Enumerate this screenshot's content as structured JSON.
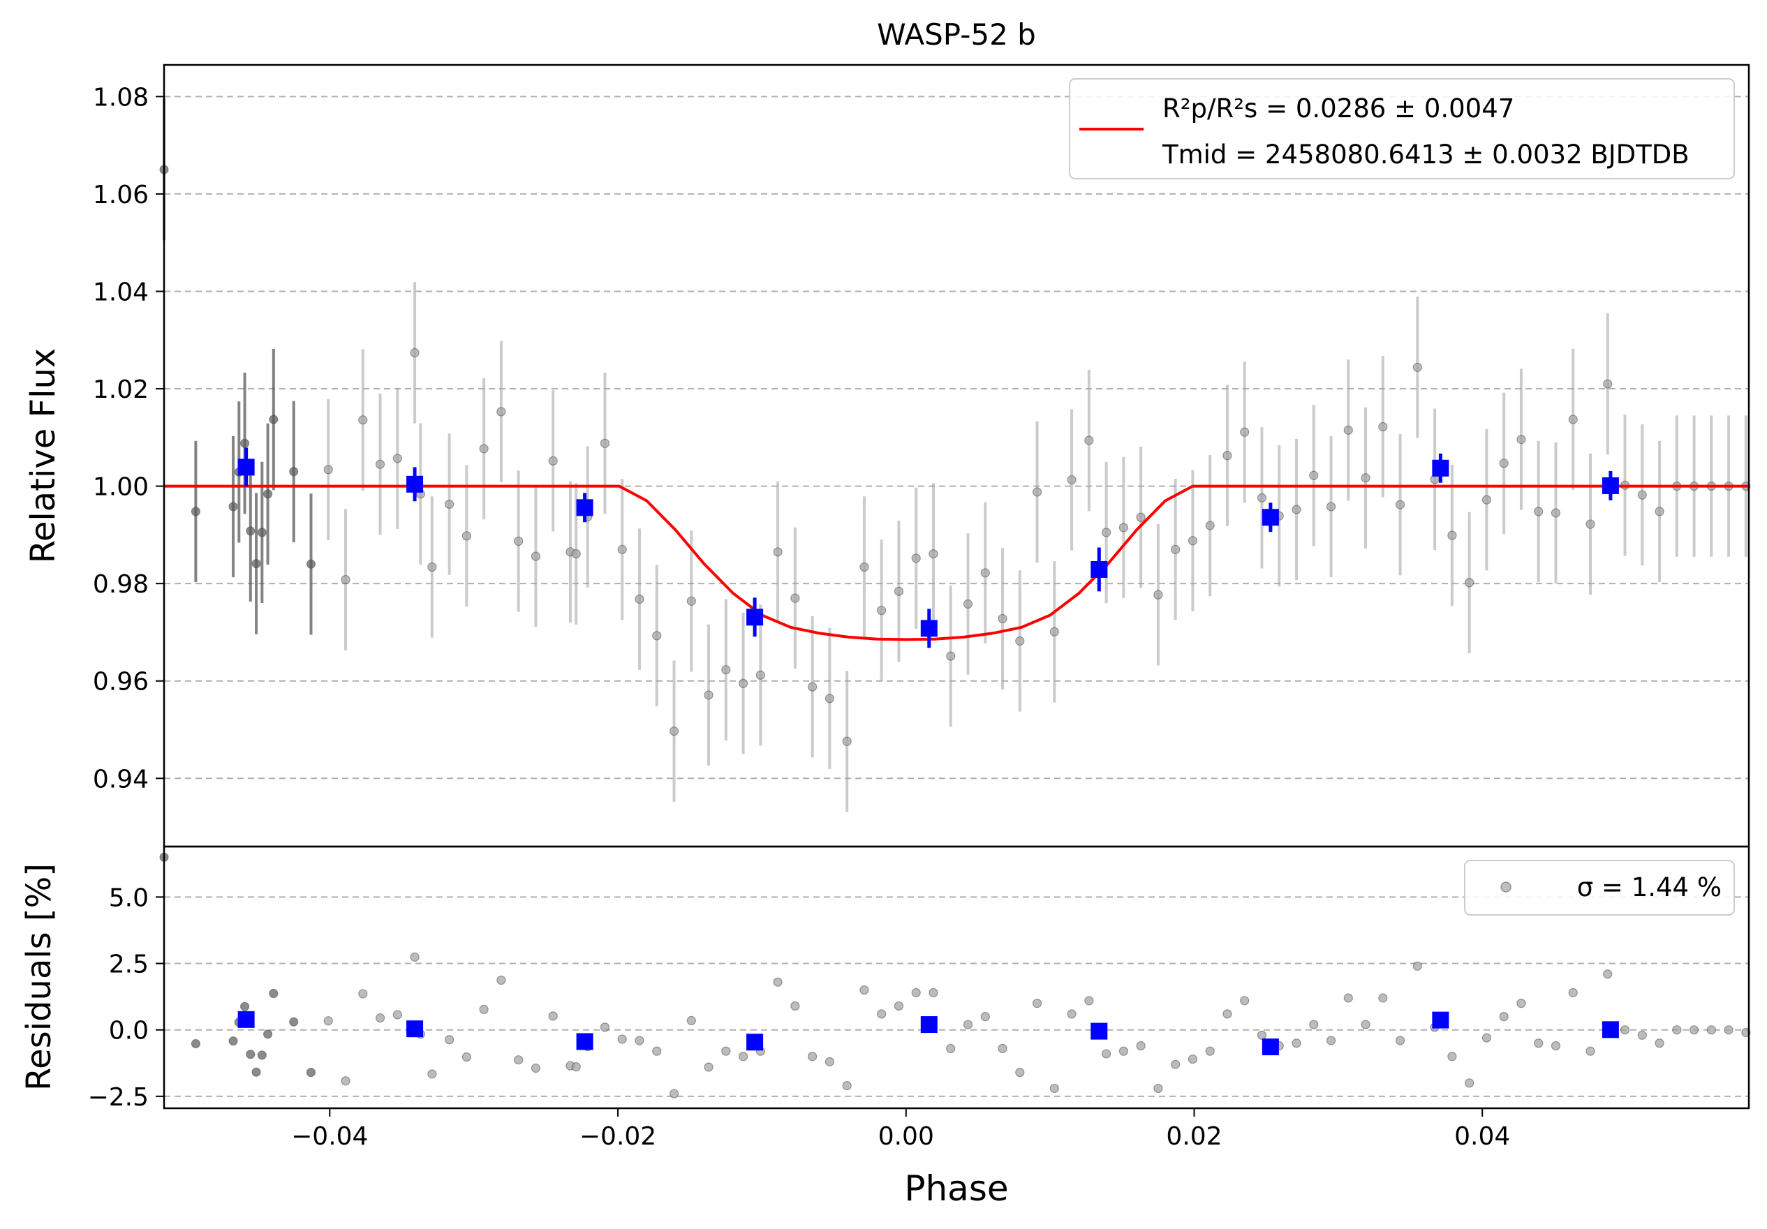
{
  "title": "WASP-52 b",
  "colors": {
    "model": "#ff0000",
    "binned": "#0000ff",
    "raw": "#808080",
    "grid": "#b0b0b0"
  },
  "top_legend": {
    "line1": "R²p/R²s = 0.0286 ± 0.0047",
    "line2": "Tmid = 2458080.6413 ± 0.0032 BJDTDB"
  },
  "bottom_legend": {
    "label": "σ = 1.44 %"
  },
  "chart_data": [
    {
      "type": "scatter",
      "title": "WASP-52 b",
      "xlabel": "Phase",
      "ylabel": "Relative Flux",
      "xlim": [
        -0.0515,
        0.0585
      ],
      "ylim": [
        0.926,
        1.0865
      ],
      "xticks": [
        -0.04,
        -0.02,
        0.0,
        0.02,
        0.04
      ],
      "xtick_labels": [
        "−0.04",
        "−0.02",
        "0.00",
        "0.02",
        "0.04"
      ],
      "yticks": [
        0.94,
        0.96,
        0.98,
        1.0,
        1.02,
        1.04,
        1.06,
        1.08
      ],
      "ytick_labels": [
        "0.94",
        "0.96",
        "0.98",
        "1.00",
        "1.02",
        "1.04",
        "1.06",
        "1.08"
      ],
      "grid": "horizontal dashed",
      "legend": "top-right",
      "model": {
        "name": "R²p/R²s = 0.0286 ± 0.0047, Tmid = 2458080.6413 ± 0.0032 BJDTDB",
        "x": [
          -0.0515,
          -0.0199,
          -0.018,
          -0.016,
          -0.014,
          -0.012,
          -0.01,
          -0.008,
          -0.006,
          -0.004,
          -0.002,
          0.0,
          0.002,
          0.004,
          0.006,
          0.008,
          0.01,
          0.012,
          0.014,
          0.016,
          0.018,
          0.0199,
          0.0585
        ],
        "y": [
          1.0,
          1.0,
          0.997,
          0.991,
          0.984,
          0.978,
          0.9735,
          0.971,
          0.9698,
          0.969,
          0.9686,
          0.9685,
          0.9686,
          0.969,
          0.9698,
          0.971,
          0.9735,
          0.978,
          0.984,
          0.991,
          0.997,
          1.0,
          1.0
        ]
      },
      "raw_points": {
        "x": [
          -0.0515,
          -0.0493,
          -0.0467,
          -0.0463,
          -0.0459,
          -0.0455,
          -0.0451,
          -0.0447,
          -0.0443,
          -0.0439,
          -0.0425,
          -0.0413,
          -0.0401,
          -0.0389,
          -0.0377,
          -0.0365,
          -0.0353,
          -0.0341,
          -0.0337,
          -0.0329,
          -0.0317,
          -0.0305,
          -0.0293,
          -0.0281,
          -0.0269,
          -0.0257,
          -0.0245,
          -0.0233,
          -0.0229,
          -0.0221,
          -0.0209,
          -0.0197,
          -0.0185,
          -0.0173,
          -0.0161,
          -0.0149,
          -0.0137,
          -0.0125,
          -0.0113,
          -0.0101,
          -0.0089,
          -0.0077,
          -0.0065,
          -0.0053,
          -0.0041,
          -0.0029,
          -0.0017,
          -0.0005,
          0.0007,
          0.0019,
          0.0031,
          0.0043,
          0.0055,
          0.0067,
          0.0079,
          0.0091,
          0.0103,
          0.0115,
          0.0127,
          0.0139,
          0.0151,
          0.0163,
          0.0175,
          0.0187,
          0.0199,
          0.0211,
          0.0223,
          0.0235,
          0.0247,
          0.0259,
          0.0271,
          0.0283,
          0.0295,
          0.0307,
          0.0319,
          0.0331,
          0.0343,
          0.0355,
          0.0367,
          0.0379,
          0.0391,
          0.0403,
          0.0415,
          0.0427,
          0.0439,
          0.0451,
          0.0463,
          0.0475,
          0.0487,
          0.0499,
          0.0511,
          0.0523,
          0.0535,
          0.0547,
          0.0559,
          0.0571,
          0.0583
        ],
        "y": [
          1.065,
          0.9948,
          0.9958,
          1.0029,
          1.0088,
          0.9908,
          0.9841,
          0.9905,
          0.9984,
          1.0137,
          1.003,
          0.984,
          1.0034,
          0.9808,
          1.0136,
          1.0045,
          1.0057,
          1.0274,
          0.9984,
          0.9834,
          0.9963,
          0.9898,
          1.0077,
          1.0153,
          0.9887,
          0.9856,
          1.0052,
          0.9865,
          0.9861,
          0.9937,
          1.0088,
          0.987,
          0.9768,
          0.9693,
          0.9497,
          0.9764,
          0.9571,
          0.9623,
          0.9595,
          0.9612,
          0.9865,
          0.977,
          0.9588,
          0.9564,
          0.9476,
          0.9834,
          0.9745,
          0.9784,
          0.9852,
          0.9861,
          0.9651,
          0.9758,
          0.9822,
          0.9728,
          0.9682,
          0.9988,
          0.9701,
          1.0013,
          1.0094,
          0.9905,
          0.9915,
          0.9936,
          0.9777,
          0.987,
          0.9888,
          0.9919,
          1.0063,
          1.0111,
          0.9976,
          0.9939,
          0.9952,
          1.0022,
          0.9958,
          1.0115,
          1.0017,
          1.0122,
          0.9962,
          1.0244,
          1.0014,
          0.9899,
          0.9802,
          0.9972,
          1.0047,
          1.0096,
          0.9948,
          0.9945,
          1.0137,
          0.9922,
          1.021,
          1.0002,
          0.9982,
          0.9948,
          1.0,
          1.0,
          1.0,
          1.0,
          1.0
        ],
        "yerr": 0.0145
      },
      "binned_points": {
        "x": [
          -0.0458,
          -0.0341,
          -0.0223,
          -0.0105,
          0.0016,
          0.0134,
          0.0253,
          0.0371,
          0.0489
        ],
        "y": [
          1.0039,
          1.0004,
          0.9956,
          0.9731,
          0.9708,
          0.9829,
          0.9936,
          1.0037,
          1.0001
        ],
        "yerr": [
          0.004,
          0.0035,
          0.003,
          0.004,
          0.004,
          0.0045,
          0.003,
          0.003,
          0.003
        ]
      }
    },
    {
      "type": "scatter",
      "xlabel": "Phase",
      "ylabel": "Residuals [%]",
      "xlim": [
        -0.0515,
        0.0585
      ],
      "ylim": [
        -2.95,
        6.9
      ],
      "yticks": [
        -2.5,
        0.0,
        2.5,
        5.0
      ],
      "ytick_labels": [
        "−2.5",
        "0.0",
        "2.5",
        "5.0"
      ],
      "grid": "horizontal dashed",
      "legend": "top-right",
      "raw_points": {
        "name": "σ = 1.44 %",
        "x": [
          -0.0515,
          -0.0493,
          -0.0467,
          -0.0463,
          -0.0459,
          -0.0455,
          -0.0451,
          -0.0447,
          -0.0443,
          -0.0439,
          -0.0425,
          -0.0413,
          -0.0401,
          -0.0389,
          -0.0377,
          -0.0365,
          -0.0353,
          -0.0341,
          -0.0337,
          -0.0329,
          -0.0317,
          -0.0305,
          -0.0293,
          -0.0281,
          -0.0269,
          -0.0257,
          -0.0245,
          -0.0233,
          -0.0229,
          -0.0221,
          -0.0209,
          -0.0197,
          -0.0185,
          -0.0173,
          -0.0161,
          -0.0149,
          -0.0137,
          -0.0125,
          -0.0113,
          -0.0101,
          -0.0089,
          -0.0077,
          -0.0065,
          -0.0053,
          -0.0041,
          -0.0029,
          -0.0017,
          -0.0005,
          0.0007,
          0.0019,
          0.0031,
          0.0043,
          0.0055,
          0.0067,
          0.0079,
          0.0091,
          0.0103,
          0.0115,
          0.0127,
          0.0139,
          0.0151,
          0.0163,
          0.0175,
          0.0187,
          0.0199,
          0.0211,
          0.0223,
          0.0235,
          0.0247,
          0.0259,
          0.0271,
          0.0283,
          0.0295,
          0.0307,
          0.0319,
          0.0331,
          0.0343,
          0.0355,
          0.0367,
          0.0379,
          0.0391,
          0.0403,
          0.0415,
          0.0427,
          0.0439,
          0.0451,
          0.0463,
          0.0475,
          0.0487,
          0.0499,
          0.0511,
          0.0523,
          0.0535,
          0.0547,
          0.0559,
          0.0571,
          0.0583
        ],
        "y": [
          6.5,
          -0.52,
          -0.42,
          0.29,
          0.88,
          -0.92,
          -1.59,
          -0.95,
          -0.16,
          1.37,
          0.3,
          -1.6,
          0.34,
          -1.92,
          1.36,
          0.45,
          0.57,
          2.74,
          -0.16,
          -1.66,
          -0.37,
          -1.02,
          0.77,
          1.87,
          -1.13,
          -1.44,
          0.52,
          -1.35,
          -1.39,
          -0.63,
          0.1,
          -0.35,
          -0.4,
          -0.8,
          -2.4,
          0.35,
          -1.4,
          -0.8,
          -1.0,
          -0.8,
          1.8,
          0.9,
          -1.0,
          -1.2,
          -2.1,
          1.5,
          0.6,
          0.9,
          1.4,
          1.4,
          -0.7,
          0.2,
          0.5,
          -0.7,
          -1.6,
          1.0,
          -2.2,
          0.6,
          1.1,
          -0.9,
          -0.8,
          -0.6,
          -2.2,
          -1.3,
          -1.1,
          -0.8,
          0.6,
          1.1,
          -0.2,
          -0.6,
          -0.5,
          0.2,
          -0.4,
          1.2,
          0.2,
          1.2,
          -0.4,
          2.4,
          0.1,
          -1.0,
          -2.0,
          -0.3,
          0.5,
          1.0,
          -0.5,
          -0.6,
          1.4,
          -0.8,
          2.1,
          0.0,
          -0.2,
          -0.5,
          0.0,
          0.0,
          0.0,
          0.0,
          -0.1
        ]
      },
      "binned_points": {
        "x": [
          -0.0458,
          -0.0341,
          -0.0223,
          -0.0105,
          0.0016,
          0.0134,
          0.0253,
          0.0371,
          0.0489
        ],
        "y": [
          0.39,
          0.04,
          -0.44,
          -0.46,
          0.2,
          -0.05,
          -0.64,
          0.37,
          0.01
        ]
      }
    }
  ]
}
